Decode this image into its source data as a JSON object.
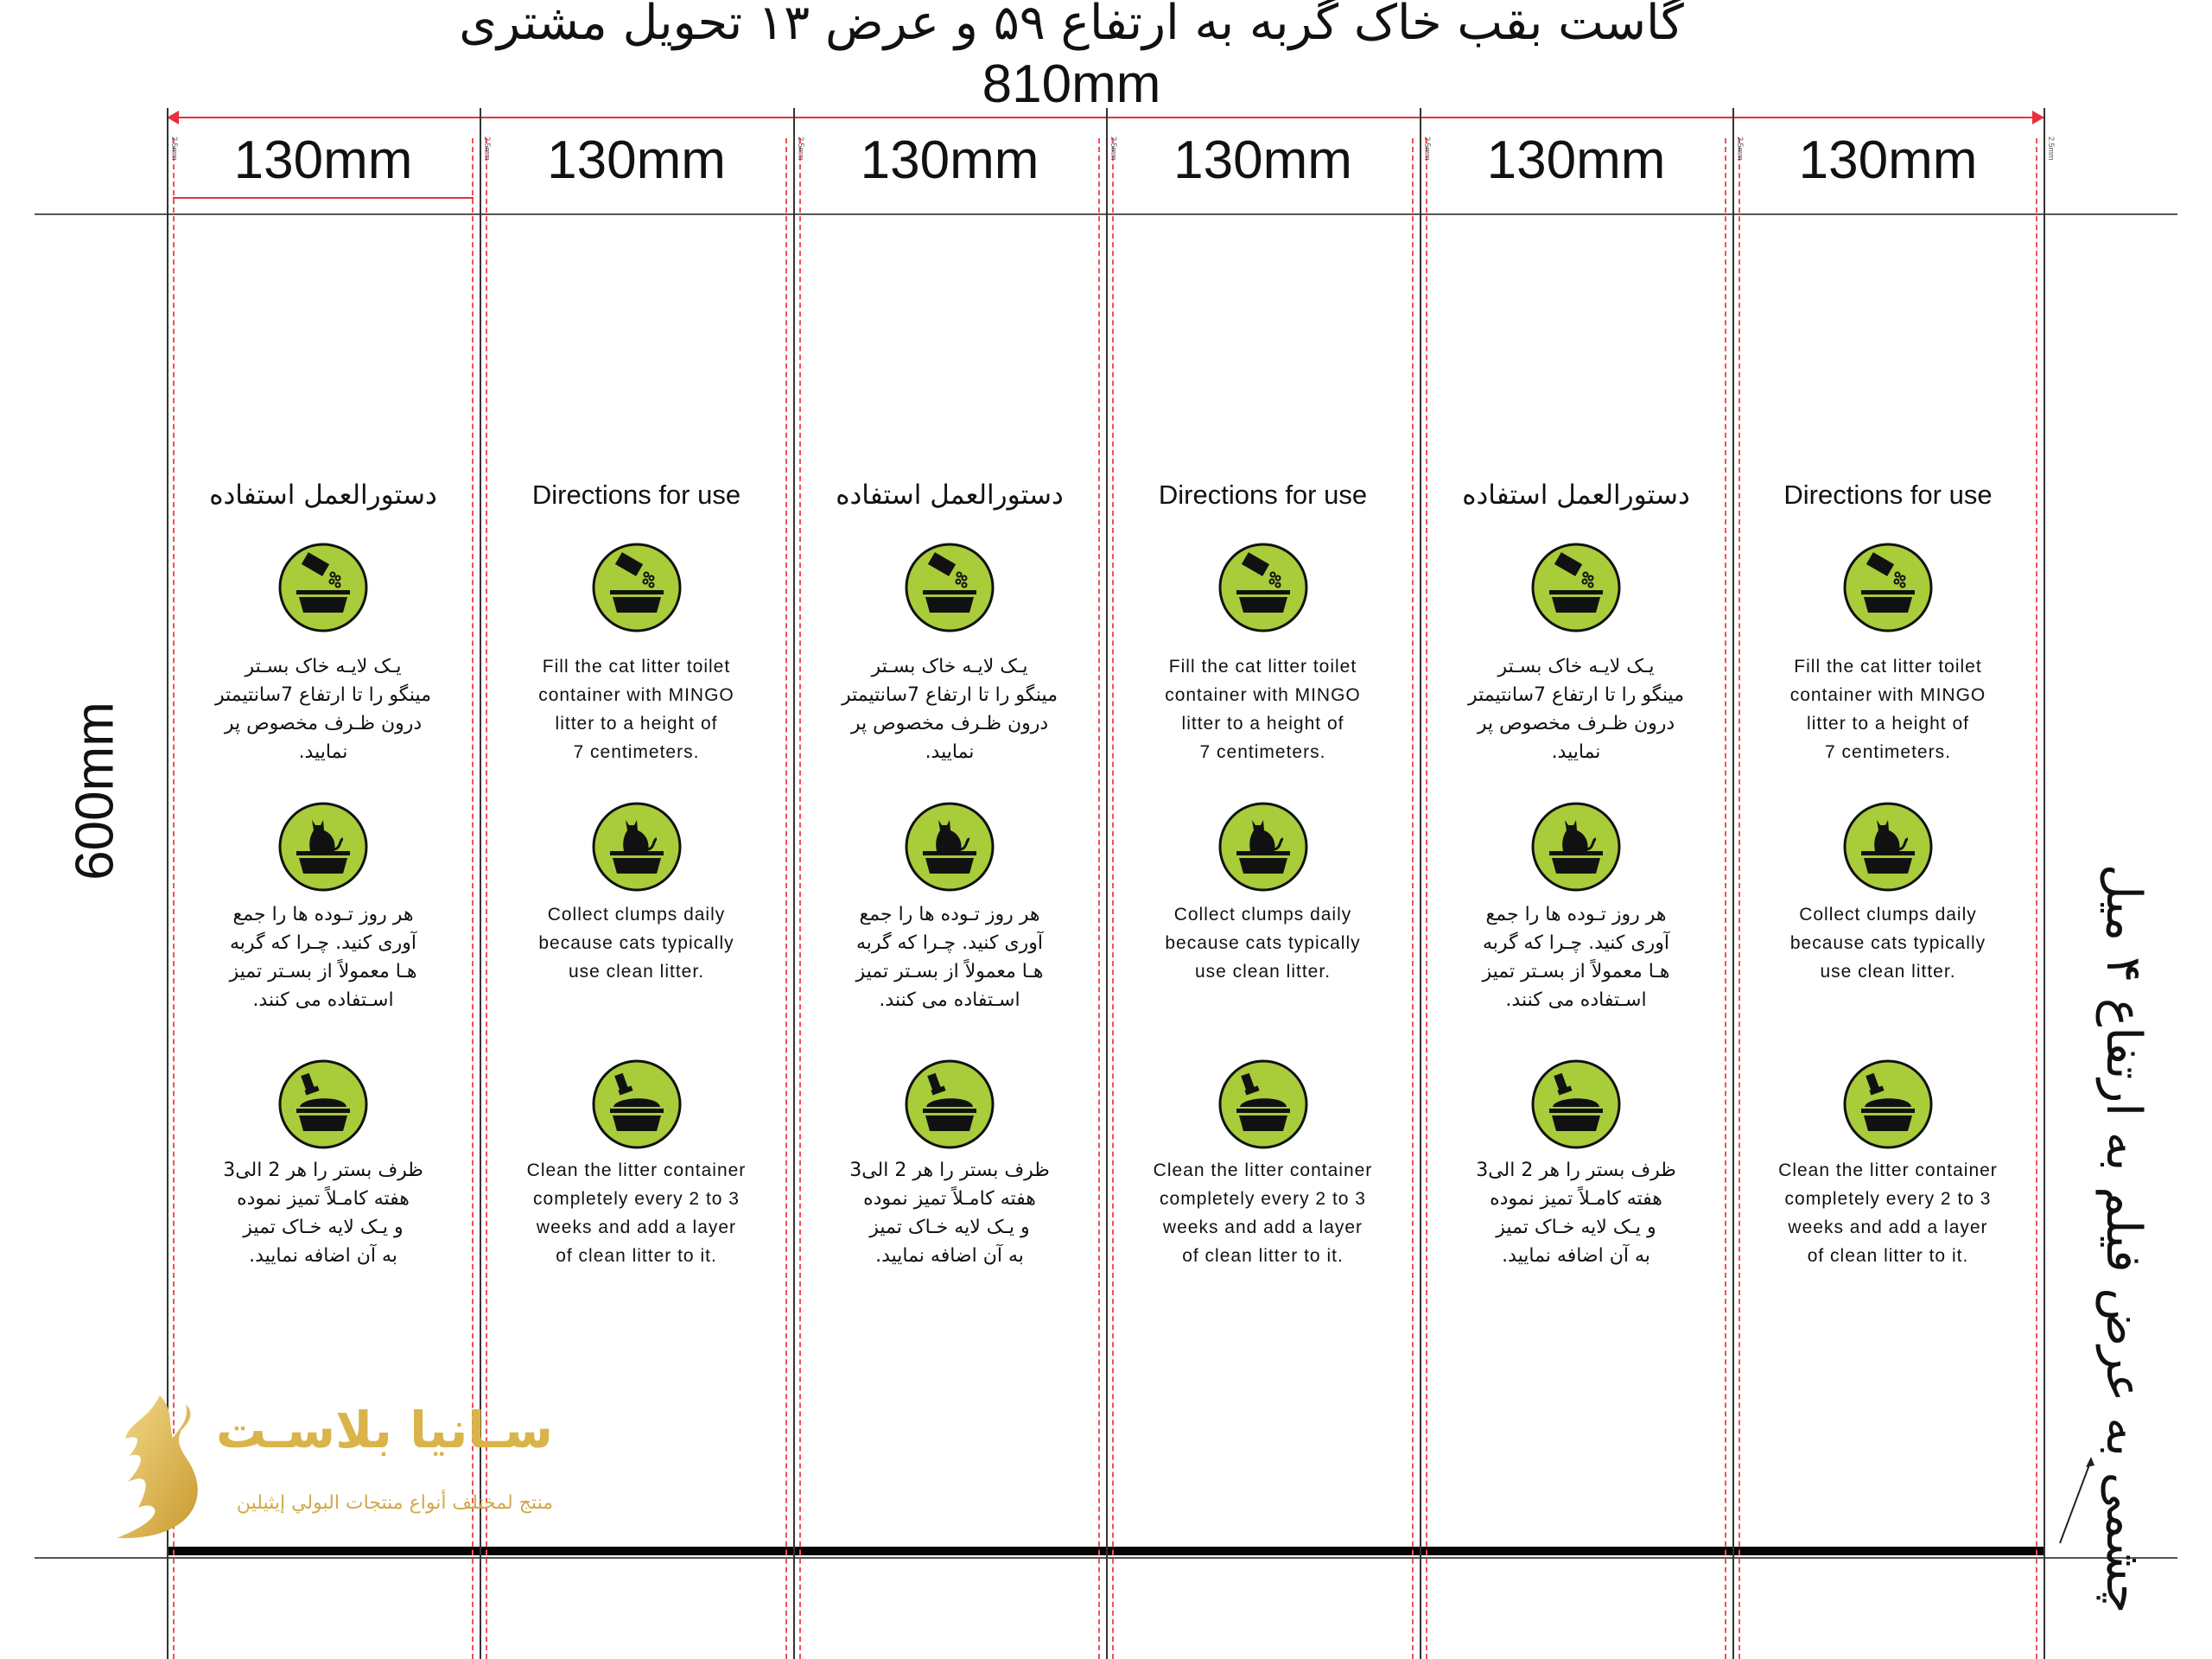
{
  "header": {
    "title": "گاست بقب خاک گربه به ارتفاع ۵۹ و عرض ۱۳ تحویل مشتری",
    "total_width": "810mm",
    "column_width": "130mm",
    "bleed_label": "2.5mm"
  },
  "height_label": "600mm",
  "side_note": "چشمی به عرض فیلم به ارتفاع ۴ میل",
  "colors": {
    "icon_fill": "#a8cc3a",
    "guide": "#e8303a",
    "logo_gold": "#d9b44a"
  },
  "column_langs": [
    "fa",
    "en",
    "fa",
    "en",
    "fa",
    "en"
  ],
  "instructions": {
    "fa": {
      "heading": "دستورالعمل استفاده",
      "steps": [
        {
          "icon": "pour-litter-icon",
          "lines": [
            "یـک لایـه خاک بسـتر",
            "مینگو را تا ارتفاع 7سانتیمتر",
            "درون ظـرف مخصوص پر",
            "نمایید."
          ]
        },
        {
          "icon": "cat-in-litter-box-icon",
          "lines": [
            "هر روز تـوده ها را جمع",
            "آوری کنید. چـرا که گربه",
            "هـا معمولاً از بسـتر تمیز",
            "اسـتفاده  می کنند."
          ]
        },
        {
          "icon": "scoop-litter-box-icon",
          "lines": [
            "ظرف بستر را هر 2 الی3",
            "هفته کامـلاً تمیز نموده",
            "و یـک لایه خـاک تمیز",
            "به آن اضافه نمایید."
          ]
        }
      ]
    },
    "en": {
      "heading": "Directions for use",
      "steps": [
        {
          "icon": "pour-litter-icon",
          "lines": [
            "Fill the cat litter toilet",
            "container with MINGO",
            "litter to a height of",
            "7 centimeters."
          ]
        },
        {
          "icon": "cat-in-litter-box-icon",
          "lines": [
            "Collect clumps daily",
            "because cats typically",
            "use clean litter."
          ]
        },
        {
          "icon": "scoop-litter-box-icon",
          "lines": [
            "Clean the litter container",
            "completely every 2 to 3",
            "weeks and add a layer",
            "of clean litter to it."
          ]
        }
      ]
    }
  },
  "logo": {
    "name": "سـانیا بلاسـت",
    "tagline": "منتج لمختلف أنواع منتجات البولي إيثيلين"
  }
}
